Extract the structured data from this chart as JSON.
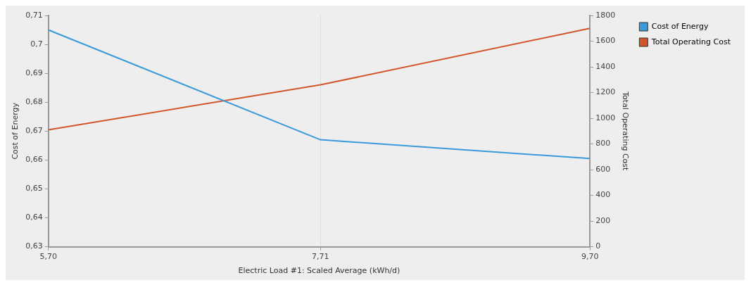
{
  "chart_data": {
    "type": "line",
    "xlabel": "Electric Load #1: Scaled Average (kWh/d)",
    "ylabel": "Cost of Energy",
    "y2label": "Total Operating Cost",
    "x": [
      5.7,
      7.71,
      9.7
    ],
    "series": [
      {
        "name": "Cost of Energy",
        "color": "#3a9ad9",
        "values": [
          0.705,
          0.667,
          0.6605
        ]
      },
      {
        "name": "Total Operating Cost",
        "color": "#d2562a",
        "values": [
          910,
          1260,
          1700
        ],
        "axis": "y2"
      }
    ],
    "xlim": [
      5.7,
      9.7
    ],
    "xticks": [
      {
        "value": 5.7,
        "label": "5,70"
      },
      {
        "value": 7.71,
        "label": "7,71"
      },
      {
        "value": 9.7,
        "label": "9,70"
      }
    ],
    "ylim": [
      0.63,
      0.71
    ],
    "yticks": [
      {
        "value": 0.63,
        "label": "0,63"
      },
      {
        "value": 0.64,
        "label": "0,64"
      },
      {
        "value": 0.65,
        "label": "0,65"
      },
      {
        "value": 0.66,
        "label": "0,66"
      },
      {
        "value": 0.67,
        "label": "0,67"
      },
      {
        "value": 0.68,
        "label": "0,68"
      },
      {
        "value": 0.69,
        "label": "0,69"
      },
      {
        "value": 0.7,
        "label": "0,7"
      },
      {
        "value": 0.71,
        "label": "0,71"
      }
    ],
    "y2lim": [
      0,
      1800
    ],
    "y2ticks": [
      0,
      200,
      400,
      600,
      800,
      1000,
      1200,
      1400,
      1600,
      1800
    ],
    "grid": "x",
    "legend": "right",
    "marker": "none",
    "line_style": "solid"
  }
}
